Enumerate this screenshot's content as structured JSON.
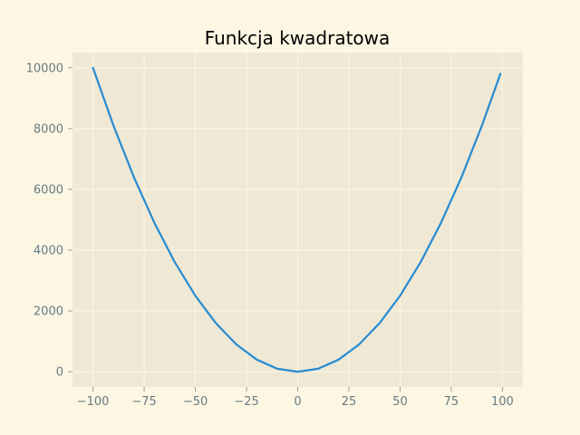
{
  "colors": {
    "figure_background": "#fdf6e3",
    "axes_background": "#eee8d5",
    "grid": "#fdf6e3",
    "line": "#268bd2",
    "tick_text": "#657b83",
    "tick_mark": "#93a1a1",
    "title_text": "#000000"
  },
  "chart_data": {
    "type": "line",
    "title": "Funkcja kwadratowa",
    "xlabel": "",
    "ylabel": "",
    "xlim": [
      -110,
      110
    ],
    "ylim": [
      -500,
      10500
    ],
    "grid": true,
    "x_ticks": [
      -100,
      -75,
      -50,
      -25,
      0,
      25,
      50,
      75,
      100
    ],
    "x_tick_labels": [
      "−100",
      "−75",
      "−50",
      "−25",
      "0",
      "25",
      "50",
      "75",
      "100"
    ],
    "y_ticks": [
      0,
      2000,
      4000,
      6000,
      8000,
      10000
    ],
    "y_tick_labels": [
      "0",
      "2000",
      "4000",
      "6000",
      "8000",
      "10000"
    ],
    "series": [
      {
        "x": [
          -100,
          -90,
          -80,
          -70,
          -60,
          -50,
          -40,
          -30,
          -20,
          -10,
          0,
          10,
          20,
          30,
          40,
          50,
          60,
          70,
          80,
          90,
          99
        ],
        "y": [
          10000,
          8100,
          6400,
          4900,
          3600,
          2500,
          1600,
          900,
          400,
          100,
          0,
          100,
          400,
          900,
          1600,
          2500,
          3600,
          4900,
          6400,
          8100,
          9801
        ]
      }
    ]
  }
}
